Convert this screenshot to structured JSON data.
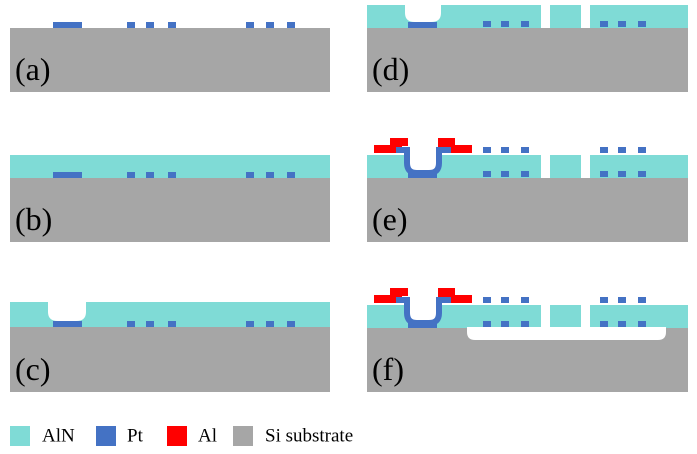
{
  "panels": [
    {
      "label": "(a)"
    },
    {
      "label": "(b)"
    },
    {
      "label": "(c)"
    },
    {
      "label": "(d)"
    },
    {
      "label": "(e)"
    },
    {
      "label": "(f)"
    }
  ],
  "legend": [
    {
      "label": "AlN"
    },
    {
      "label": "Pt"
    },
    {
      "label": "Al"
    },
    {
      "label": "Si substrate"
    }
  ]
}
